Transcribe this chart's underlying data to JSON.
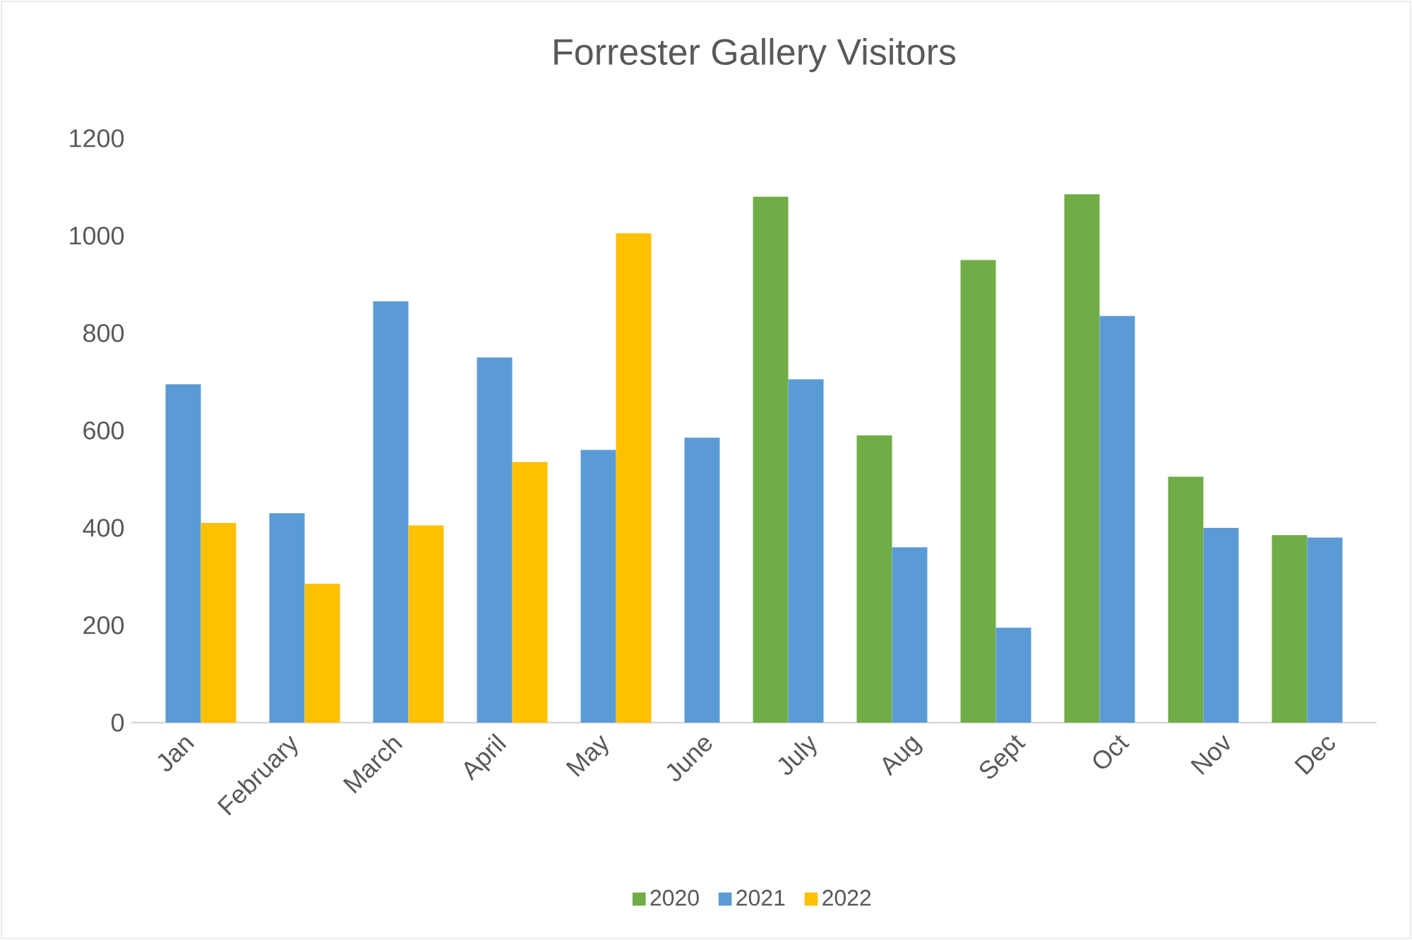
{
  "chart_data": {
    "type": "bar",
    "title": "Forrester Gallery Visitors",
    "categories": [
      "Jan",
      "February",
      "March",
      "April",
      "May",
      "June",
      "July",
      "Aug",
      "Sept",
      "Oct",
      "Nov",
      "Dec"
    ],
    "series": [
      {
        "name": "2020",
        "color": "#70ad47",
        "values": [
          null,
          null,
          null,
          null,
          null,
          null,
          1080,
          590,
          950,
          1085,
          505,
          385
        ]
      },
      {
        "name": "2021",
        "color": "#5b9bd5",
        "values": [
          695,
          430,
          865,
          750,
          560,
          585,
          705,
          360,
          195,
          835,
          400,
          380
        ]
      },
      {
        "name": "2022",
        "color": "#ffc000",
        "values": [
          410,
          285,
          405,
          535,
          1005,
          null,
          null,
          null,
          null,
          null,
          null,
          null
        ]
      }
    ],
    "ylim": [
      0,
      1200
    ],
    "yticks": [
      0,
      200,
      400,
      600,
      800,
      1000,
      1200
    ],
    "grid": false,
    "legend": "bottom"
  }
}
